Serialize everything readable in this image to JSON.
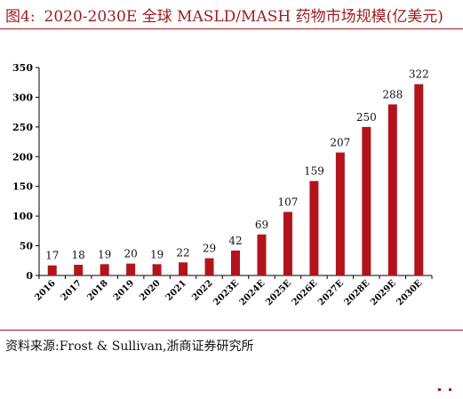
{
  "header": {
    "figure_label": "图4:",
    "title": "2020-2030E 全球 MASLD/MASH 药物市场规模(亿美元)"
  },
  "footer": {
    "source": "资料来源:Frost & Sullivan,浙商证券研究所"
  },
  "colors": {
    "accent": "#9c1b1f",
    "bar": "#b3141b"
  },
  "chart_data": {
    "type": "bar",
    "categories": [
      "2016",
      "2017",
      "2018",
      "2019",
      "2020",
      "2021",
      "2022",
      "2023E",
      "2024E",
      "2025E",
      "2026E",
      "2027E",
      "2028E",
      "2029E",
      "2030E"
    ],
    "values": [
      17,
      18,
      19,
      20,
      19,
      22,
      29,
      42,
      69,
      107,
      159,
      207,
      250,
      288,
      322
    ],
    "data_labels": [
      "17",
      "18",
      "19",
      "20",
      "19",
      "22",
      "29",
      "42",
      "69",
      "107",
      "159",
      "207",
      "250",
      "288",
      "322"
    ],
    "yticks": [
      "0",
      "50",
      "100",
      "150",
      "200",
      "250",
      "300",
      "350"
    ],
    "ylim": [
      0,
      350
    ],
    "grid": false,
    "legend": "none"
  }
}
